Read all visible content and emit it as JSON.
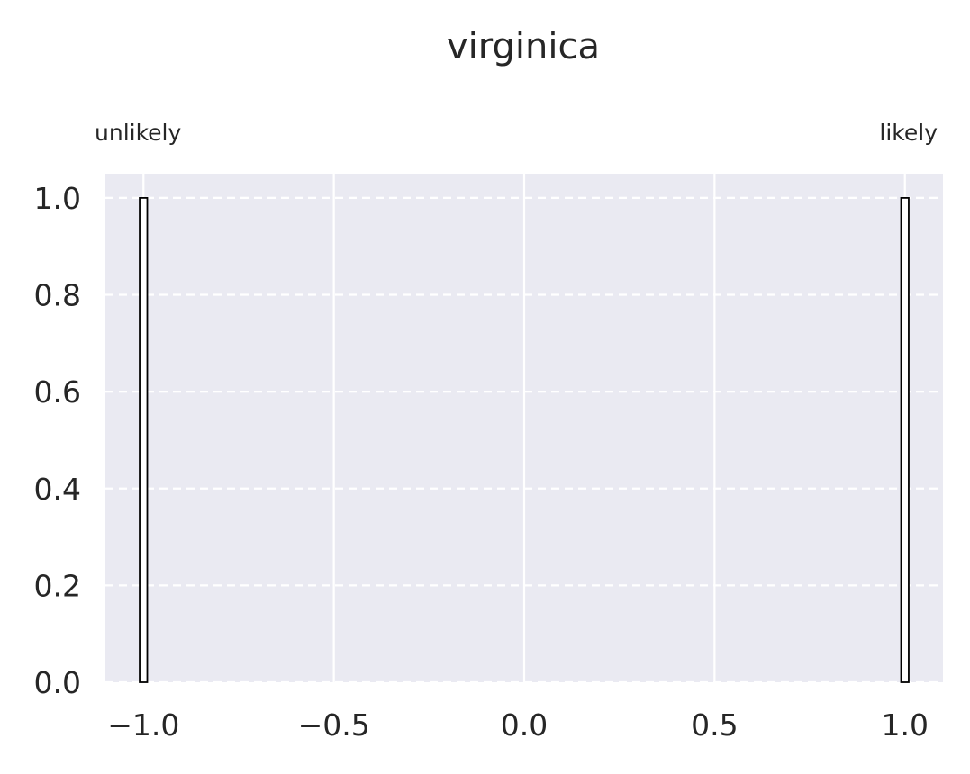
{
  "chart_data": {
    "type": "bar",
    "title": "virginica",
    "xlabel": "",
    "ylabel": "",
    "xlim": [
      -1.1,
      1.1
    ],
    "ylim": [
      0,
      1.05
    ],
    "x_ticks": [
      -1.0,
      -0.5,
      0.0,
      0.5,
      1.0
    ],
    "x_tick_labels": [
      "−1.0",
      "−0.5",
      "0.0",
      "0.5",
      "1.0"
    ],
    "y_ticks": [
      0.0,
      0.2,
      0.4,
      0.6,
      0.8,
      1.0
    ],
    "y_tick_labels": [
      "0.0",
      "0.2",
      "0.4",
      "0.6",
      "0.8",
      "1.0"
    ],
    "annotations": {
      "left": "unlikely",
      "right": "likely"
    },
    "grid": {
      "x": "solid",
      "y": "dashed"
    },
    "colors": {
      "background": "#eaeaf2",
      "grid": "#ffffff",
      "bar_edge": "#000000",
      "bar_fill": "#ffffff"
    },
    "bars": [
      {
        "x": -1.0,
        "value": 1.0
      },
      {
        "x": 1.0,
        "value": 1.0
      }
    ]
  }
}
